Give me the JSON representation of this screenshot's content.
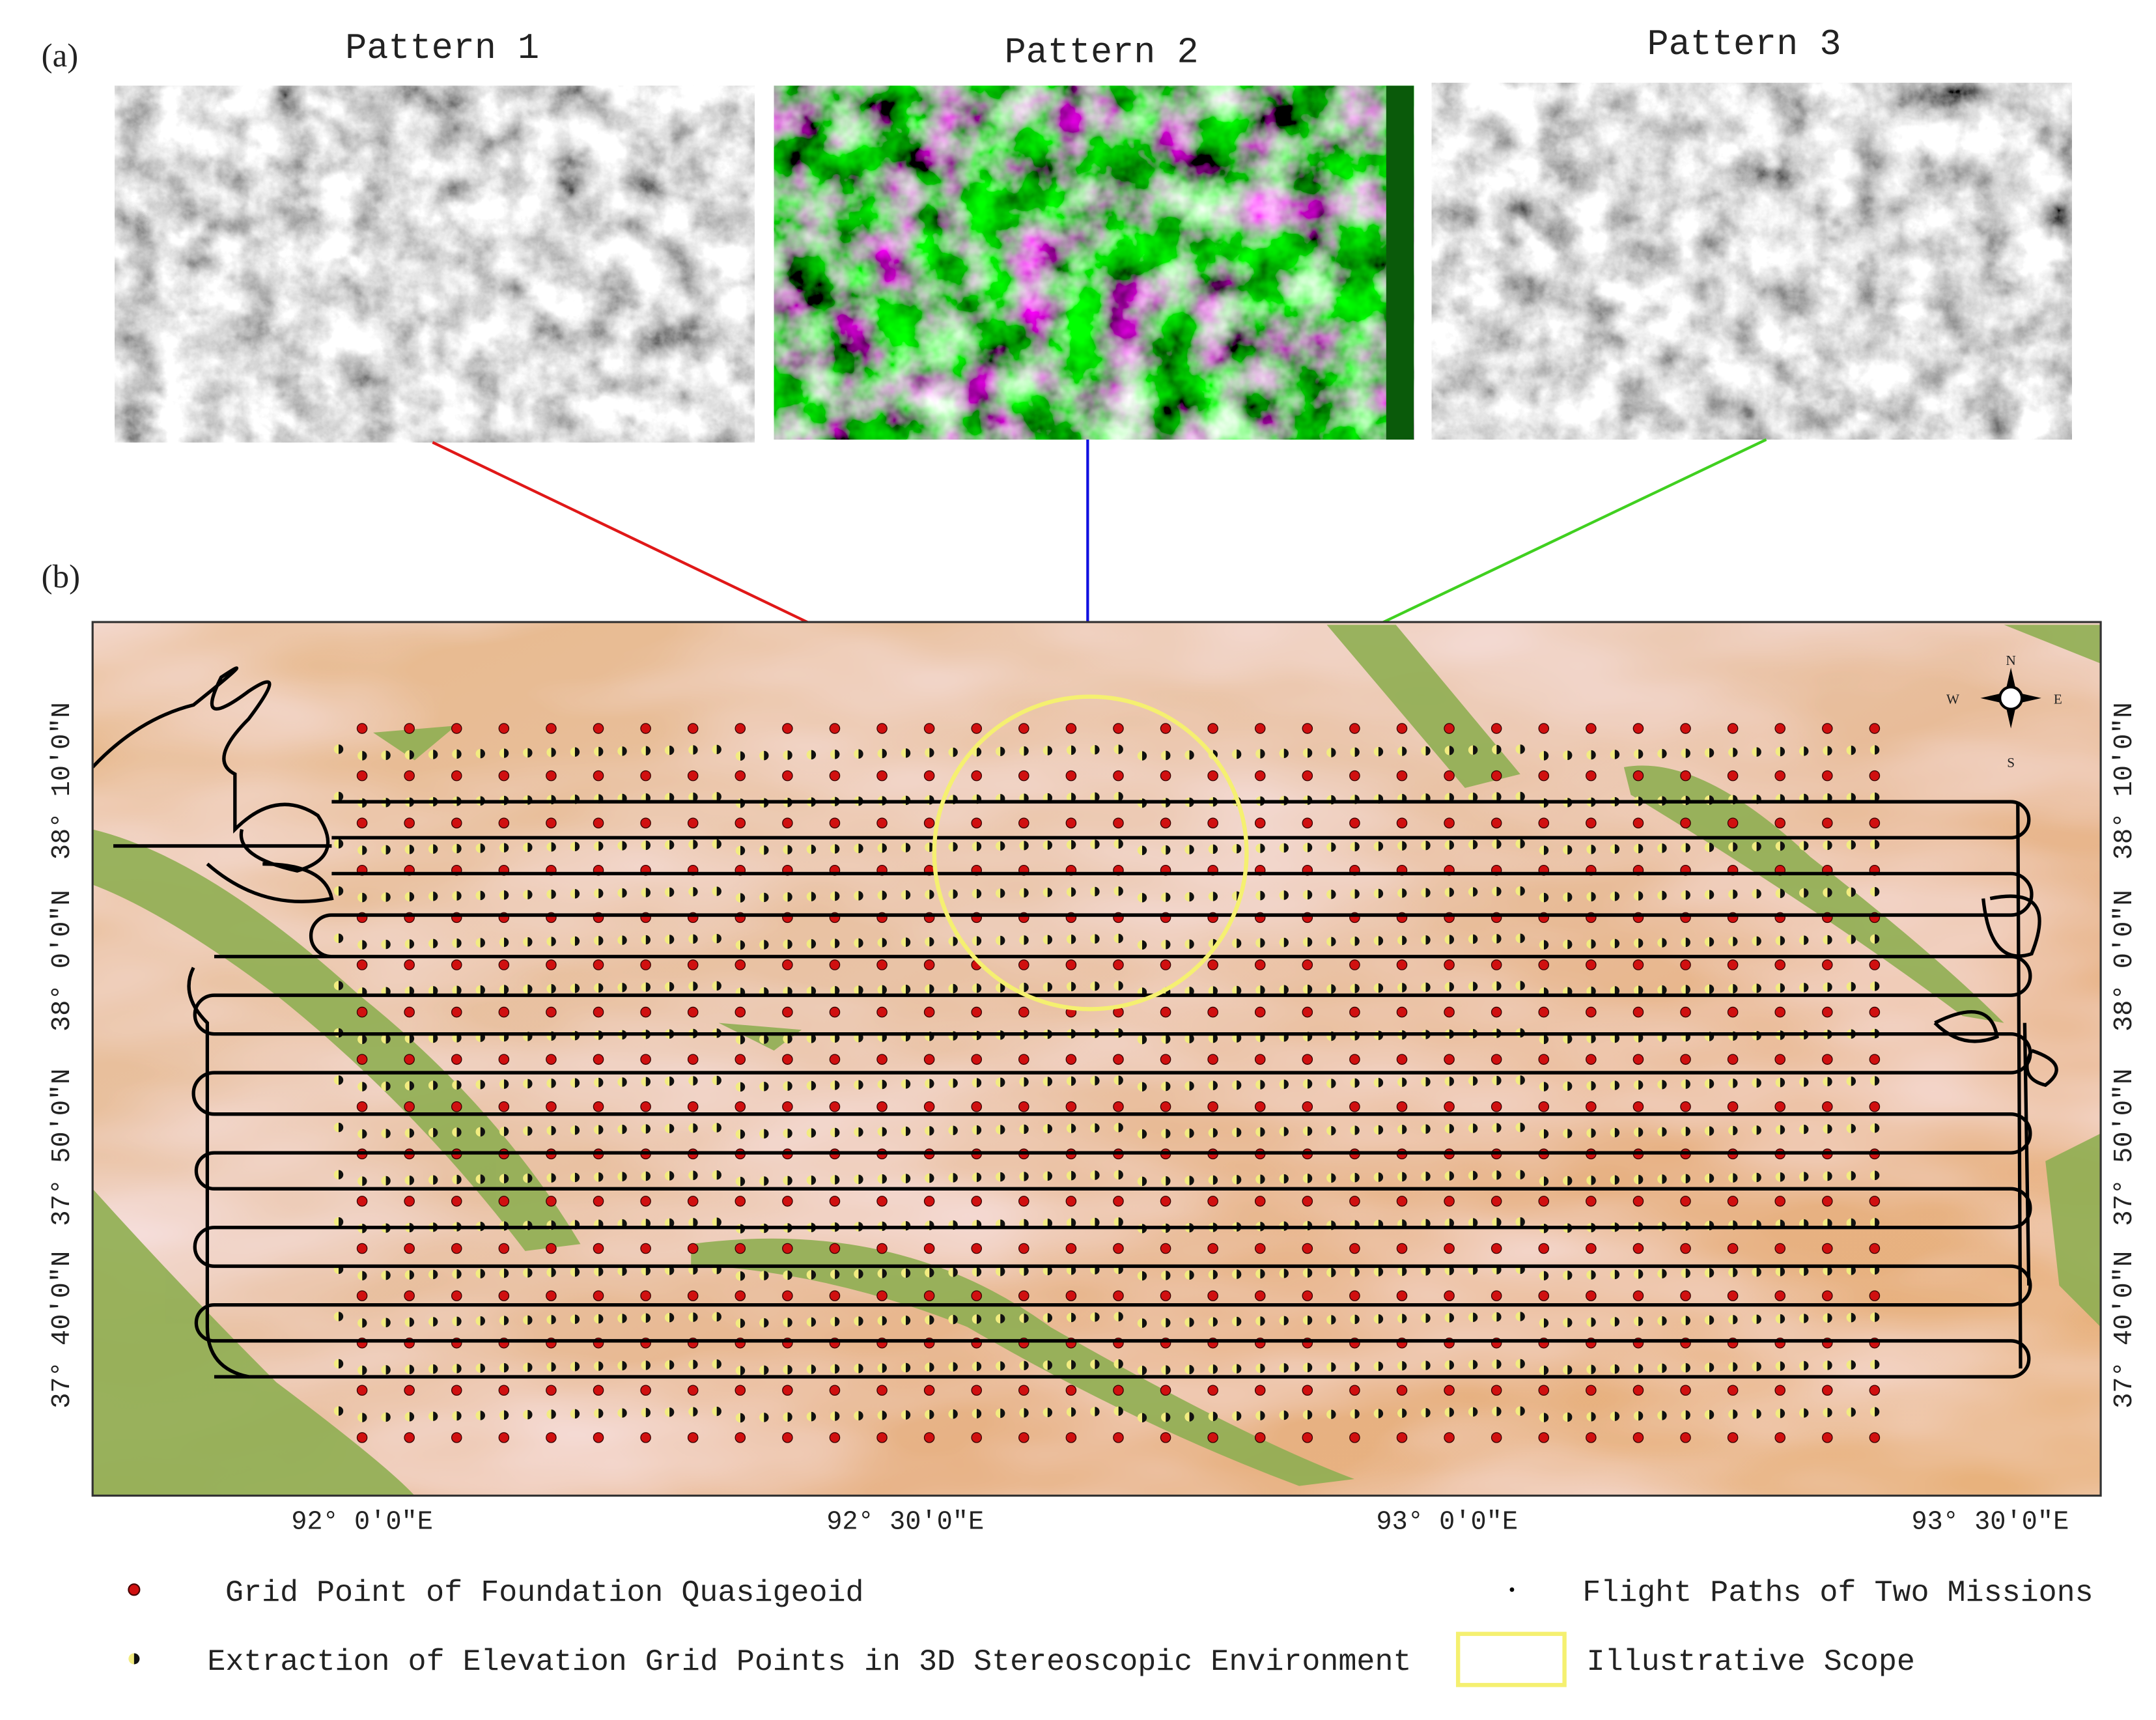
{
  "panel_a": {
    "label": "(a)",
    "patterns": [
      "Pattern 1",
      "Pattern 2",
      "Pattern 3"
    ]
  },
  "panel_b": {
    "label": "(b)",
    "longitude_labels": [
      "92° 0′0″E",
      "92° 30′0″E",
      "93° 0′0″E",
      "93° 30′0″E"
    ],
    "latitude_labels": [
      "38° 10′0″N",
      "38° 0′0″N",
      "37° 50′0″N",
      "37° 40′0″N"
    ],
    "compass": {
      "north": "N",
      "east": "E",
      "south": "S",
      "west": "W"
    }
  },
  "legend": {
    "grid_point": "Grid Point of Foundation Quasigeoid",
    "flight_paths": "Flight Paths of Two Missions",
    "extraction": "Extraction of Elevation Grid Points in 3D Stereoscopic Environment",
    "scope": "Illustrative Scope"
  }
}
